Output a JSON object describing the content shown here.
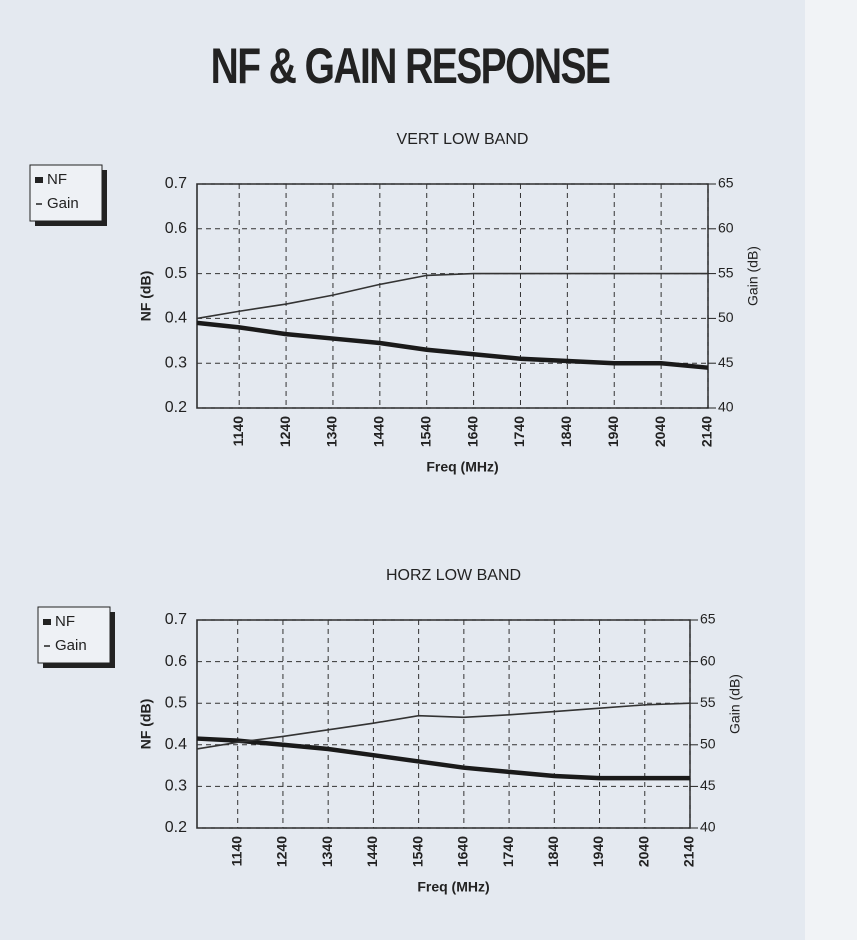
{
  "title": "NF & GAIN RESPONSE",
  "chart_data": [
    {
      "type": "line",
      "title": "VERT LOW BAND",
      "x_label": "Freq (MHz)",
      "y_label": "NF (dB)",
      "y2_label": "Gain (dB)",
      "x": [
        1050,
        1140,
        1240,
        1340,
        1440,
        1540,
        1640,
        1740,
        1840,
        1940,
        2040,
        2140
      ],
      "xlim": [
        1050,
        2140
      ],
      "xticks": [
        1140,
        1240,
        1340,
        1440,
        1540,
        1640,
        1740,
        1840,
        1940,
        2040,
        2140
      ],
      "ylim": [
        0.2,
        0.7
      ],
      "yticks": [
        0.2,
        0.3,
        0.4,
        0.5,
        0.6,
        0.7
      ],
      "y2lim": [
        40,
        65
      ],
      "y2ticks": [
        40,
        45,
        50,
        55,
        60,
        65
      ],
      "grid": true,
      "series": [
        {
          "name": "NF",
          "color": "#1a1a1a",
          "values": [
            0.39,
            0.38,
            0.365,
            0.355,
            0.345,
            0.33,
            0.32,
            0.31,
            0.305,
            0.3,
            0.3,
            0.29
          ]
        },
        {
          "name": "Gain",
          "color": "#333333",
          "axis": "y2",
          "values": [
            50,
            50.8,
            51.6,
            52.6,
            53.8,
            54.8,
            55,
            55,
            55,
            55,
            55,
            55
          ]
        }
      ]
    },
    {
      "type": "line",
      "title": "HORZ LOW BAND",
      "x_label": "Freq (MHz)",
      "y_label": "NF (dB)",
      "y2_label": "Gain (dB)",
      "x": [
        1050,
        1140,
        1240,
        1340,
        1440,
        1540,
        1640,
        1740,
        1840,
        1940,
        2040,
        2140
      ],
      "xlim": [
        1050,
        2140
      ],
      "xticks": [
        1140,
        1240,
        1340,
        1440,
        1540,
        1640,
        1740,
        1840,
        1940,
        2040,
        2140
      ],
      "ylim": [
        0.2,
        0.7
      ],
      "yticks": [
        0.2,
        0.3,
        0.4,
        0.5,
        0.6,
        0.7
      ],
      "y2lim": [
        40,
        65
      ],
      "y2ticks": [
        40,
        45,
        50,
        55,
        60,
        65
      ],
      "grid": true,
      "series": [
        {
          "name": "NF",
          "color": "#1a1a1a",
          "values": [
            0.415,
            0.41,
            0.4,
            0.39,
            0.375,
            0.36,
            0.345,
            0.335,
            0.325,
            0.32,
            0.32,
            0.32
          ]
        },
        {
          "name": "Gain",
          "color": "#333333",
          "axis": "y2",
          "values": [
            49.5,
            50.3,
            51,
            51.8,
            52.6,
            53.5,
            53.3,
            53.6,
            54,
            54.4,
            54.8,
            55
          ]
        }
      ]
    }
  ]
}
